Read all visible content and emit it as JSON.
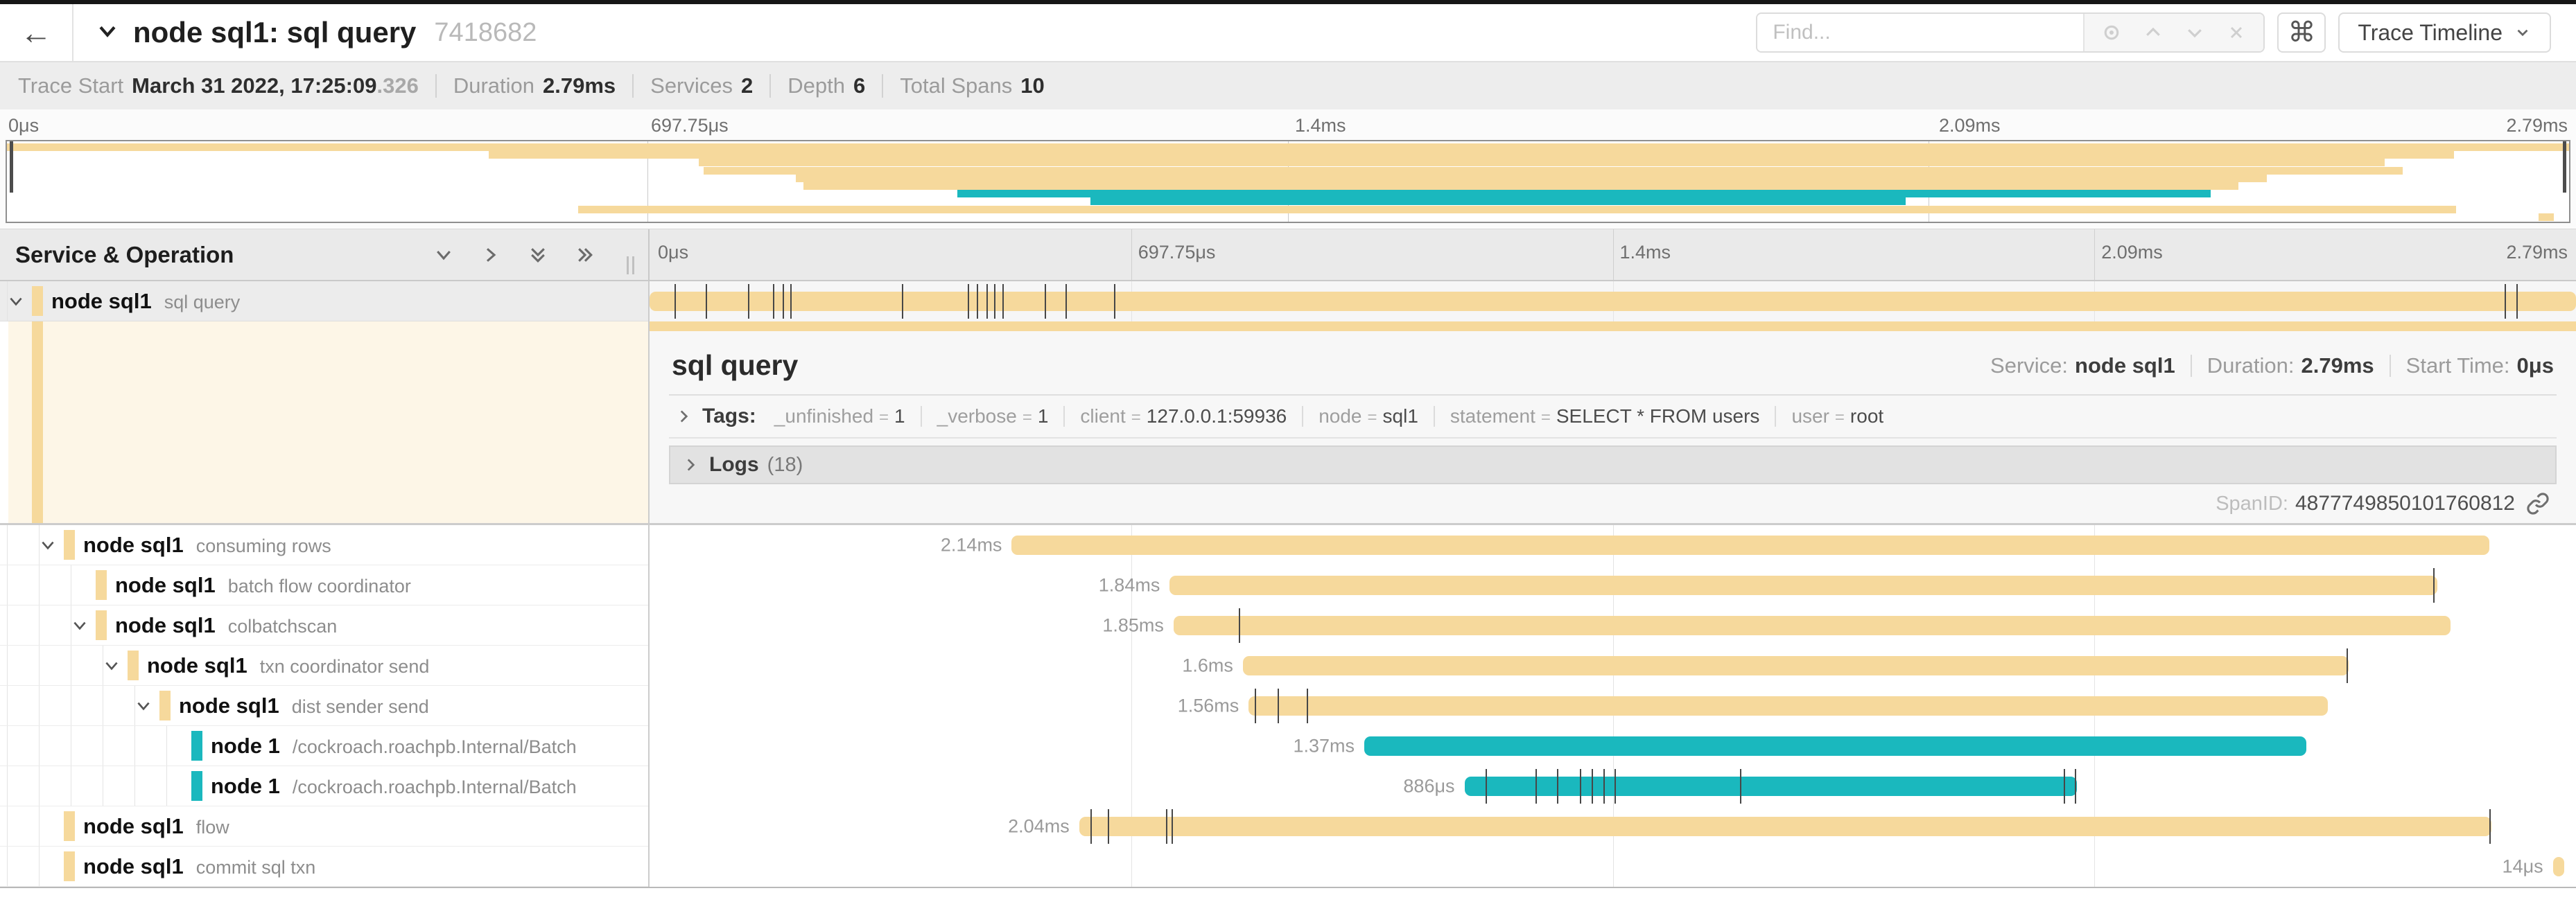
{
  "colors": {
    "tan": "#f6d99c",
    "teal": "#1ab8be",
    "cream": "#fdf6e7"
  },
  "header": {
    "back_icon": "←",
    "title": "node sql1: sql query",
    "trace_id": "7418682",
    "find_placeholder": "Find...",
    "cmd_icon": "⌘",
    "view_button": "Trace Timeline"
  },
  "summary": {
    "items": [
      {
        "label": "Trace Start",
        "value": "March 31 2022, 17:25:09",
        "muted": ".326"
      },
      {
        "label": "Duration",
        "value": "2.79ms",
        "muted": ""
      },
      {
        "label": "Services",
        "value": "2",
        "muted": ""
      },
      {
        "label": "Depth",
        "value": "6",
        "muted": ""
      },
      {
        "label": "Total Spans",
        "value": "10",
        "muted": ""
      }
    ]
  },
  "ruler": {
    "ticks": [
      {
        "label": "0μs",
        "pos": 0
      },
      {
        "label": "697.75μs",
        "pos": 25
      },
      {
        "label": "1.4ms",
        "pos": 50
      },
      {
        "label": "2.09ms",
        "pos": 75
      },
      {
        "label": "2.79ms",
        "pos": 100
      }
    ],
    "gridlines": [
      25,
      50,
      75
    ]
  },
  "left_header": {
    "title": "Service & Operation"
  },
  "spans": [
    {
      "service": "node sql1",
      "operation": "sql query",
      "level": 0,
      "expandable": true,
      "selected": true,
      "color": "tan",
      "start": 0,
      "end": 100,
      "label": "",
      "ticks": [
        1.3,
        2.9,
        5.1,
        6.4,
        6.9,
        7.3,
        13.1,
        16.5,
        17.0,
        17.5,
        17.9,
        18.3,
        20.5,
        21.6,
        24.1,
        96.3,
        96.9
      ]
    },
    {
      "service": "node sql1",
      "operation": "consuming rows",
      "level": 1,
      "expandable": true,
      "selected": false,
      "color": "tan",
      "start": 18.8,
      "end": 95.5,
      "label": "2.14ms",
      "ticks": []
    },
    {
      "service": "node sql1",
      "operation": "batch flow coordinator",
      "level": 2,
      "expandable": false,
      "selected": false,
      "color": "tan",
      "start": 27.0,
      "end": 92.8,
      "label": "1.84ms",
      "ticks": [
        92.6
      ]
    },
    {
      "service": "node sql1",
      "operation": "colbatchscan",
      "level": 2,
      "expandable": true,
      "selected": false,
      "color": "tan",
      "start": 27.2,
      "end": 93.5,
      "label": "1.85ms",
      "ticks": [
        30.6
      ]
    },
    {
      "service": "node sql1",
      "operation": "txn coordinator send",
      "level": 3,
      "expandable": true,
      "selected": false,
      "color": "tan",
      "start": 30.8,
      "end": 88.2,
      "label": "1.6ms",
      "ticks": [
        88.1
      ]
    },
    {
      "service": "node sql1",
      "operation": "dist sender send",
      "level": 4,
      "expandable": true,
      "selected": false,
      "color": "tan",
      "start": 31.1,
      "end": 87.1,
      "label": "1.56ms",
      "ticks": [
        31.4,
        32.6,
        34.1
      ]
    },
    {
      "service": "node 1",
      "operation": "/cockroach.roachpb.Internal/Batch",
      "level": 5,
      "expandable": false,
      "selected": false,
      "color": "teal",
      "start": 37.1,
      "end": 86.0,
      "label": "1.37ms",
      "ticks": []
    },
    {
      "service": "node 1",
      "operation": "/cockroach.roachpb.Internal/Batch",
      "level": 5,
      "expandable": false,
      "selected": false,
      "color": "teal",
      "start": 42.3,
      "end": 74.1,
      "label": "886μs",
      "ticks": [
        43.4,
        46.0,
        47.1,
        48.3,
        48.9,
        49.5,
        50.1,
        56.6,
        73.4,
        74.0
      ]
    },
    {
      "service": "node sql1",
      "operation": "flow",
      "level": 1,
      "expandable": false,
      "selected": false,
      "color": "tan",
      "start": 22.3,
      "end": 95.6,
      "label": "2.04ms",
      "ticks": [
        22.9,
        23.8,
        26.8,
        27.1,
        95.5
      ]
    },
    {
      "service": "node sql1",
      "operation": "commit sql txn",
      "level": 1,
      "expandable": false,
      "selected": false,
      "color": "tan",
      "start": 98.8,
      "end": 99.4,
      "label": "14μs",
      "ticks": []
    }
  ],
  "detail": {
    "title": "sql query",
    "service_label": "Service:",
    "service_value": "node sql1",
    "duration_label": "Duration:",
    "duration_value": "2.79ms",
    "start_label": "Start Time:",
    "start_value": "0μs",
    "tags_label": "Tags:",
    "tags": [
      {
        "key": "_unfinished",
        "value": "1"
      },
      {
        "key": "_verbose",
        "value": "1"
      },
      {
        "key": "client",
        "value": "127.0.0.1:59936"
      },
      {
        "key": "node",
        "value": "sql1"
      },
      {
        "key": "statement",
        "value": "SELECT * FROM users"
      },
      {
        "key": "user",
        "value": "root"
      }
    ],
    "logs_label": "Logs",
    "logs_count": "(18)",
    "spanid_label": "SpanID:",
    "spanid_value": "4877749850101760812"
  }
}
